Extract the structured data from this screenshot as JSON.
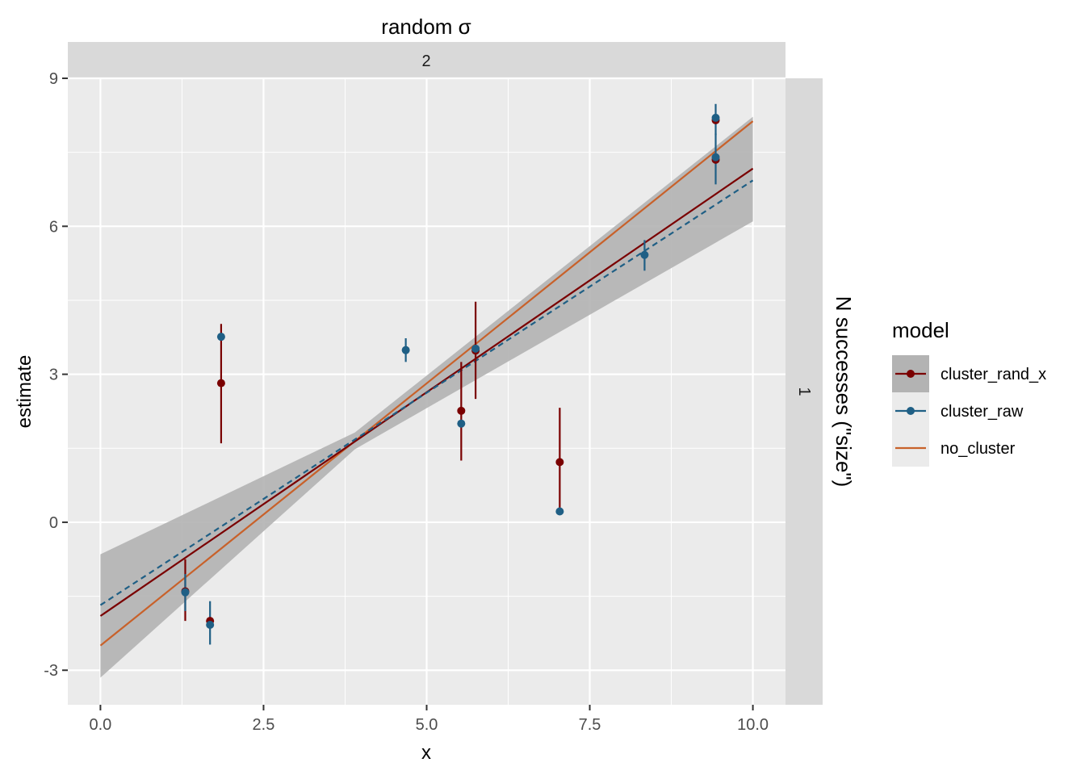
{
  "chart_data": {
    "type": "scatter",
    "facet_col_title": "random σ",
    "facet_col_value": "2",
    "facet_row_title": "N successes (\"size\")",
    "facet_row_value": "1",
    "xlabel": "x",
    "ylabel": "estimate",
    "xlim": [
      -0.5,
      10.5
    ],
    "ylim": [
      -3.7,
      9.0
    ],
    "x_ticks": [
      0.0,
      2.5,
      5.0,
      7.5,
      10.0
    ],
    "x_tick_labels": [
      "0.0",
      "2.5",
      "5.0",
      "7.5",
      "10.0"
    ],
    "y_ticks": [
      -3,
      0,
      3,
      6,
      9
    ],
    "y_tick_labels": [
      "-3",
      "0",
      "3",
      "6",
      "9"
    ],
    "grid": true,
    "legend": {
      "title": "model",
      "placement": "right",
      "entries": [
        "cluster_rand_x",
        "cluster_raw",
        "no_cluster"
      ]
    },
    "colors": {
      "cluster_rand_x": "#7a0000",
      "cluster_raw": "#1f5f85",
      "no_cluster": "#c8612a",
      "ribbon": "#b3b3b3",
      "panel": "#ebebeb",
      "strip": "#d9d9d9"
    },
    "series": [
      {
        "name": "cluster_rand_x",
        "kind": "point-range",
        "points": [
          {
            "x": 1.3,
            "y": -1.4,
            "ymin": -2.0,
            "ymax": -0.75
          },
          {
            "x": 1.68,
            "y": -2.0,
            "ymin": -2.05,
            "ymax": -1.95
          },
          {
            "x": 1.85,
            "y": 2.82,
            "ymin": 1.6,
            "ymax": 4.02
          },
          {
            "x": 5.53,
            "y": 2.26,
            "ymin": 1.25,
            "ymax": 3.25
          },
          {
            "x": 5.75,
            "y": 3.48,
            "ymin": 2.5,
            "ymax": 4.47
          },
          {
            "x": 7.04,
            "y": 1.22,
            "ymin": 0.2,
            "ymax": 2.32
          },
          {
            "x": 9.43,
            "y": 8.15,
            "ymin": 8.1,
            "ymax": 8.2
          },
          {
            "x": 9.43,
            "y": 7.35,
            "ymin": 7.3,
            "ymax": 7.4
          }
        ],
        "fit": {
          "x": [
            0.0,
            10.0
          ],
          "y": [
            -1.9,
            7.17
          ],
          "style": "solid"
        },
        "ribbon": {
          "x": [
            0.0,
            3.9,
            10.0
          ],
          "ymin": [
            -3.15,
            1.48,
            6.1
          ],
          "ymax": [
            -0.65,
            1.82,
            8.22
          ]
        }
      },
      {
        "name": "cluster_raw",
        "kind": "point-range",
        "points": [
          {
            "x": 1.3,
            "y": -1.42,
            "ymin": -1.8,
            "ymax": -1.05
          },
          {
            "x": 1.68,
            "y": -2.08,
            "ymin": -2.48,
            "ymax": -1.6
          },
          {
            "x": 1.85,
            "y": 3.76,
            "ymin": 3.7,
            "ymax": 3.82
          },
          {
            "x": 4.68,
            "y": 3.49,
            "ymin": 3.25,
            "ymax": 3.73
          },
          {
            "x": 5.53,
            "y": 2.0,
            "ymin": 1.95,
            "ymax": 2.05
          },
          {
            "x": 5.75,
            "y": 3.52,
            "ymin": 3.46,
            "ymax": 3.58
          },
          {
            "x": 7.04,
            "y": 0.22,
            "ymin": 0.17,
            "ymax": 0.27
          },
          {
            "x": 8.34,
            "y": 5.42,
            "ymin": 5.1,
            "ymax": 5.72
          },
          {
            "x": 9.43,
            "y": 8.2,
            "ymin": 7.85,
            "ymax": 8.48
          },
          {
            "x": 9.43,
            "y": 7.4,
            "ymin": 6.85,
            "ymax": 7.88
          }
        ],
        "fit": {
          "x": [
            0.0,
            10.0
          ],
          "y": [
            -1.68,
            6.93
          ],
          "style": "dashed"
        }
      },
      {
        "name": "no_cluster",
        "kind": "line",
        "fit": {
          "x": [
            0.0,
            10.0
          ],
          "y": [
            -2.5,
            8.13
          ],
          "style": "solid"
        }
      }
    ]
  }
}
